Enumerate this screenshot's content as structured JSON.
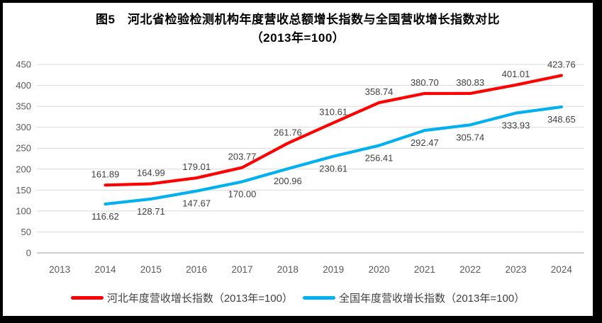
{
  "title": {
    "line1": "图5　河北省检验检测机构年度营收总额增长指数与全国营收增长指数对比",
    "line2": "（2013年=100）"
  },
  "chart_data": {
    "type": "line",
    "categories": [
      "2013",
      "2014",
      "2015",
      "2016",
      "2017",
      "2018",
      "2019",
      "2020",
      "2021",
      "2022",
      "2023",
      "2024"
    ],
    "series": [
      {
        "name": "河北年度营收增长指数（2013年=100）",
        "color": "#FF0000",
        "label_position": "above",
        "values": [
          null,
          161.89,
          164.99,
          179.01,
          203.77,
          261.76,
          310.61,
          358.74,
          380.7,
          380.83,
          401.01,
          423.76
        ]
      },
      {
        "name": "全国年度营收增长指数（2013年=100）",
        "color": "#00B0F0",
        "label_position": "below",
        "values": [
          null,
          116.62,
          128.71,
          147.67,
          170.0,
          200.96,
          230.61,
          256.41,
          292.47,
          305.74,
          333.93,
          348.65
        ]
      }
    ],
    "ylim": [
      0,
      450
    ],
    "ytick_step": 50,
    "yticks": [
      0,
      50,
      100,
      150,
      200,
      250,
      300,
      350,
      400,
      450
    ],
    "grid": true,
    "data_labels": true,
    "data_label_decimals": 2,
    "legend_position": "bottom"
  },
  "colors": {
    "grid": "#D9D9D9",
    "axis_line": "#BFBFBF",
    "tick_label": "#595959",
    "data_label": "#404040",
    "title": "#000000",
    "background": "#FFFFFF",
    "frame_border": "#000000"
  }
}
